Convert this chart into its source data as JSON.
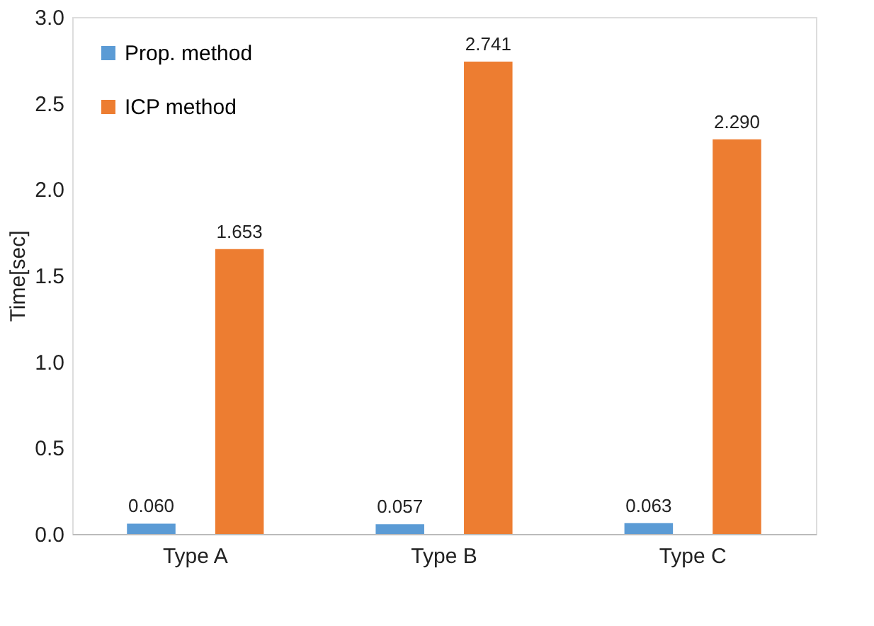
{
  "chart_data": {
    "type": "bar",
    "ylabel": "Time[sec]",
    "categories": [
      "Type A",
      "Type B",
      "Type C"
    ],
    "series": [
      {
        "name": "Prop. method",
        "color": "#5b9bd5",
        "values": [
          0.06,
          0.057,
          0.063
        ],
        "value_labels": [
          "0.060",
          "0.057",
          "0.063"
        ]
      },
      {
        "name": "ICP method",
        "color": "#ed7d31",
        "values": [
          1.653,
          2.741,
          2.29
        ],
        "value_labels": [
          "1.653",
          "2.741",
          "2.290"
        ]
      }
    ],
    "ylim": [
      0,
      3.0
    ],
    "yticks": [
      {
        "value": 0,
        "label": "0.0"
      },
      {
        "value": 0.5,
        "label": "0.5"
      },
      {
        "value": 1,
        "label": "1.0"
      },
      {
        "value": 1.5,
        "label": "1.5"
      },
      {
        "value": 2,
        "label": "2.0"
      },
      {
        "value": 2.5,
        "label": "2.5"
      },
      {
        "value": 3,
        "label": "3.0"
      }
    ],
    "grid": false,
    "legend": "top left"
  }
}
